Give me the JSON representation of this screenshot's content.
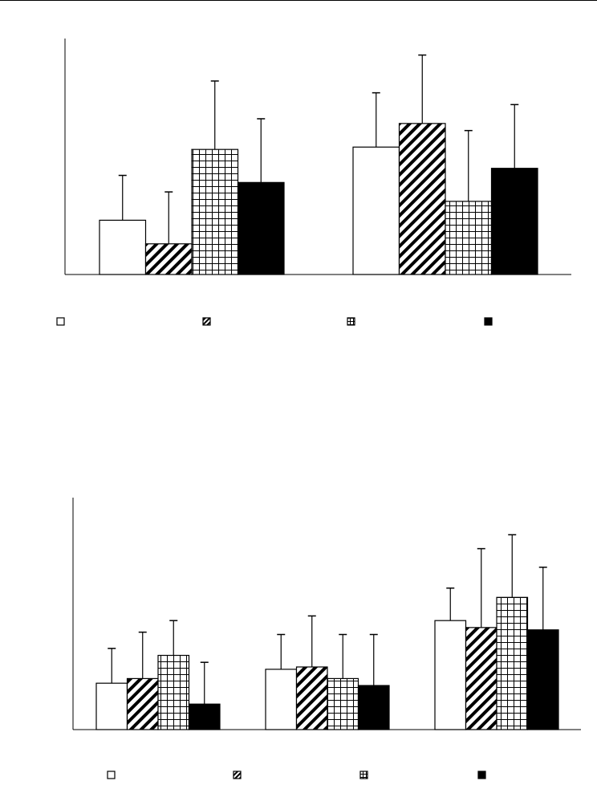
{
  "colors": {
    "ink": "#000000",
    "background": "#ffffff"
  },
  "patterns": [
    "open",
    "hatched",
    "grid",
    "solid"
  ],
  "chart_data": [
    {
      "type": "bar",
      "categories": [
        "",
        ""
      ],
      "series": [
        {
          "pattern": "open",
          "values": [
            0.23,
            0.54
          ],
          "errors": [
            0.19,
            0.23
          ]
        },
        {
          "pattern": "hatched",
          "values": [
            0.13,
            0.64
          ],
          "errors": [
            0.22,
            0.29
          ]
        },
        {
          "pattern": "grid",
          "values": [
            0.53,
            0.31
          ],
          "errors": [
            0.29,
            0.3
          ]
        },
        {
          "pattern": "solid",
          "values": [
            0.39,
            0.45
          ],
          "errors": [
            0.27,
            0.27
          ]
        }
      ],
      "ylim": [
        0,
        1
      ],
      "grid": false,
      "legend": "bottom"
    },
    {
      "type": "bar",
      "categories": [
        "",
        "",
        ""
      ],
      "series": [
        {
          "pattern": "open",
          "values": [
            0.2,
            0.26,
            0.47
          ],
          "errors": [
            0.15,
            0.15,
            0.14
          ]
        },
        {
          "pattern": "hatched",
          "values": [
            0.22,
            0.27,
            0.44
          ],
          "errors": [
            0.2,
            0.22,
            0.34
          ]
        },
        {
          "pattern": "grid",
          "values": [
            0.32,
            0.22,
            0.57
          ],
          "errors": [
            0.15,
            0.19,
            0.27
          ]
        },
        {
          "pattern": "solid",
          "values": [
            0.11,
            0.19,
            0.43
          ],
          "errors": [
            0.18,
            0.22,
            0.27
          ]
        }
      ],
      "ylim": [
        0,
        1
      ],
      "grid": false,
      "legend": "bottom"
    }
  ]
}
